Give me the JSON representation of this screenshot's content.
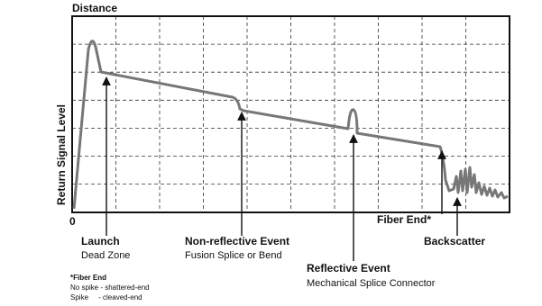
{
  "header": {
    "title": "Distance"
  },
  "axis": {
    "y_label": "Return Signal Level",
    "origin": "0"
  },
  "events": [
    {
      "title": "Launch",
      "subtitle": "Dead Zone"
    },
    {
      "title": "Non-reflective Event",
      "subtitle": "Fusion Splice or Bend"
    },
    {
      "title": "Reflective Event",
      "subtitle": "Mechanical Splice Connector"
    },
    {
      "title": "Fiber End*"
    },
    {
      "title": "Backscatter"
    }
  ],
  "note": {
    "title": "*Fiber End",
    "lines": [
      "No spike - shattered-end",
      "Spike     - cleaved-end"
    ]
  }
}
